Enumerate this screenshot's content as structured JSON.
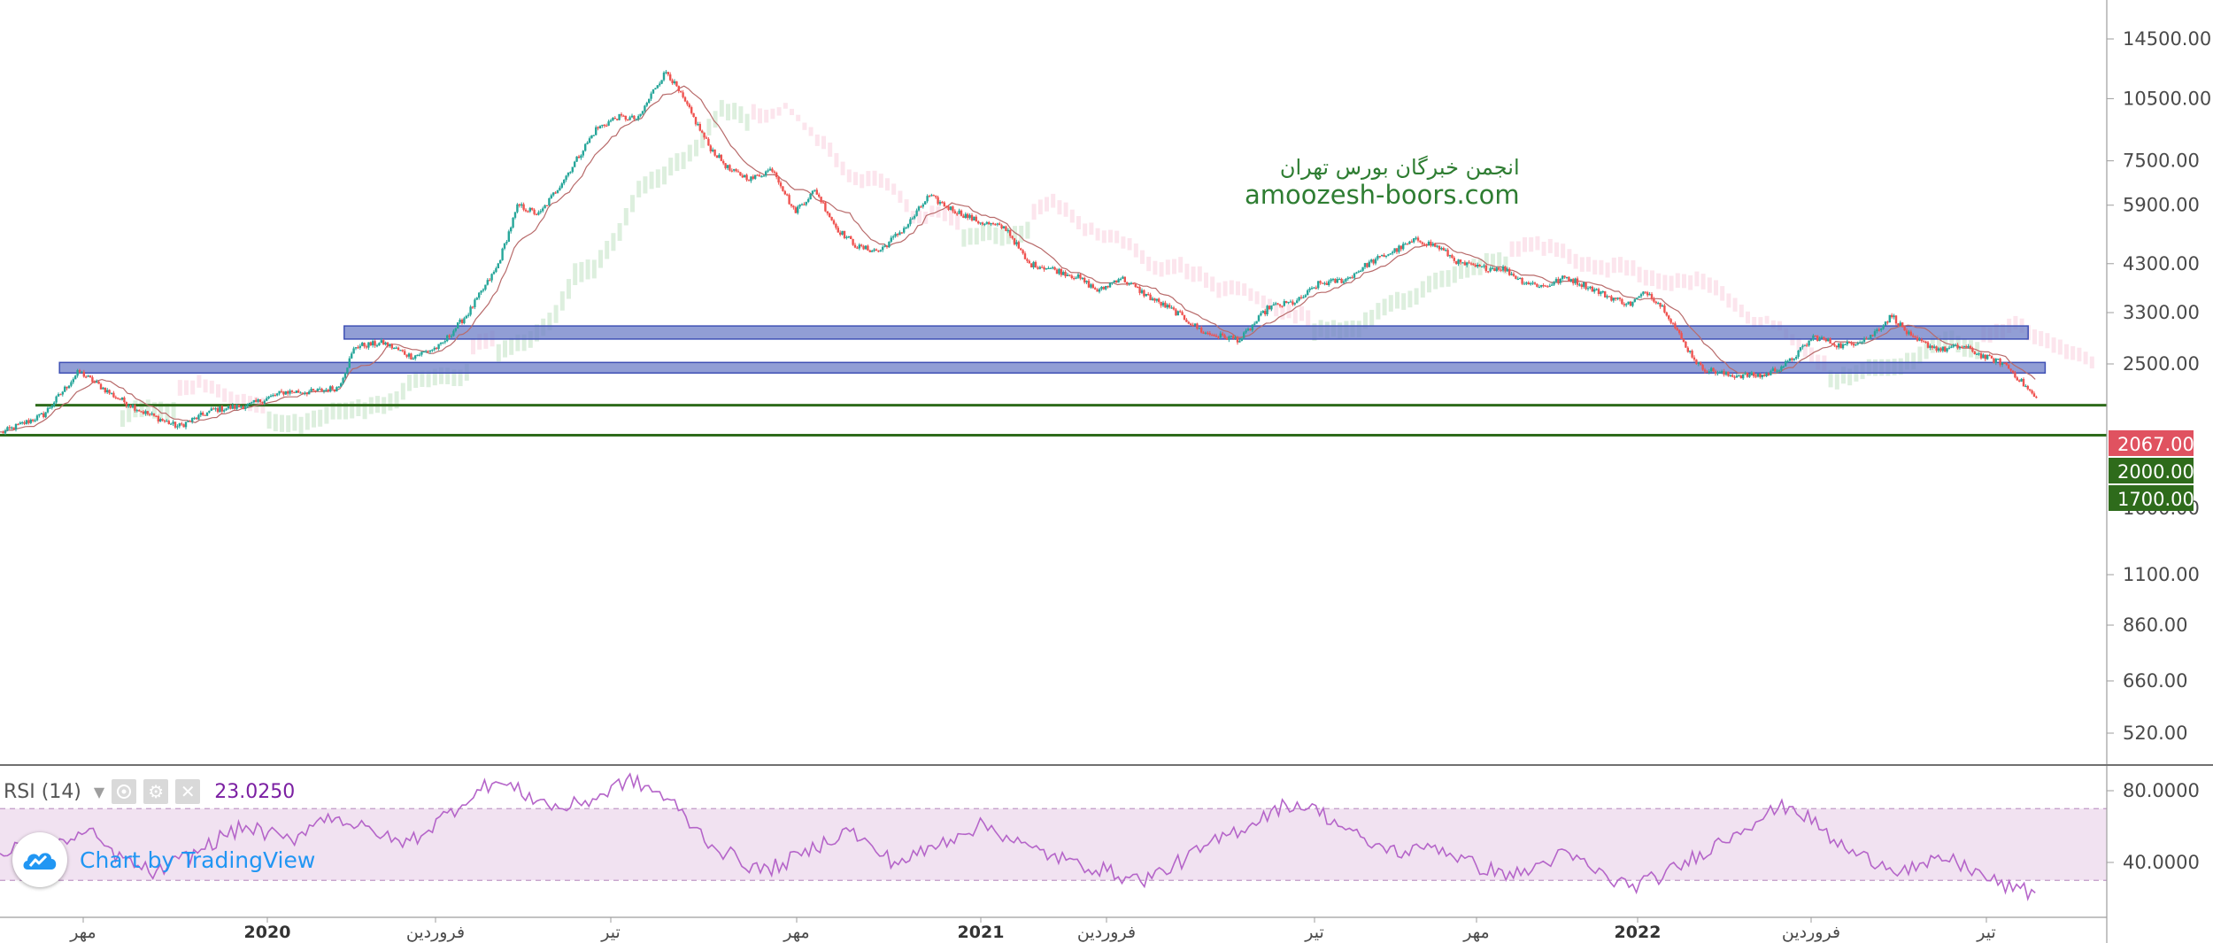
{
  "chart_data": {
    "type": "candlestick",
    "scale": "log",
    "price_axis_ticks": [
      14500,
      10500,
      7500,
      5900,
      4300,
      3300,
      2500,
      1100,
      860,
      660,
      520
    ],
    "price_labels": [
      {
        "value": 2067,
        "text": "2067.00",
        "color": "#e05260"
      },
      {
        "value": 2000,
        "text": "2000.00",
        "color": "#2e6b1b"
      },
      {
        "value": 1700,
        "text": "1700.00",
        "color": "#2e6b1b"
      }
    ],
    "overlapped_tick_text": "1600.00",
    "time_axis_labels": [
      {
        "text": "مهر",
        "year": false
      },
      {
        "text": "2020",
        "year": true
      },
      {
        "text": "فروردین",
        "year": false
      },
      {
        "text": "تیر",
        "year": false
      },
      {
        "text": "مهر",
        "year": false
      },
      {
        "text": "2021",
        "year": true
      },
      {
        "text": "فروردین",
        "year": false
      },
      {
        "text": "تیر",
        "year": false
      },
      {
        "text": "مهر",
        "year": false
      },
      {
        "text": "2022",
        "year": true
      },
      {
        "text": "فروردین",
        "year": false
      },
      {
        "text": "تیر",
        "year": false
      }
    ],
    "price_path": [
      [
        0,
        1720
      ],
      [
        30,
        1900
      ],
      [
        55,
        2400
      ],
      [
        80,
        2100
      ],
      [
        100,
        1930
      ],
      [
        125,
        1780
      ],
      [
        150,
        1950
      ],
      [
        175,
        2000
      ],
      [
        200,
        2150
      ],
      [
        220,
        2150
      ],
      [
        238,
        2200
      ],
      [
        250,
        2750
      ],
      [
        270,
        2800
      ],
      [
        290,
        2600
      ],
      [
        310,
        2750
      ],
      [
        330,
        3300
      ],
      [
        350,
        4200
      ],
      [
        365,
        5900
      ],
      [
        380,
        5600
      ],
      [
        400,
        7000
      ],
      [
        420,
        8900
      ],
      [
        435,
        9500
      ],
      [
        450,
        9400
      ],
      [
        462,
        11200
      ],
      [
        470,
        12200
      ],
      [
        485,
        10000
      ],
      [
        500,
        8100
      ],
      [
        515,
        7100
      ],
      [
        530,
        6800
      ],
      [
        545,
        7200
      ],
      [
        560,
        5700
      ],
      [
        575,
        6400
      ],
      [
        590,
        5200
      ],
      [
        605,
        4700
      ],
      [
        620,
        4600
      ],
      [
        640,
        5300
      ],
      [
        655,
        6200
      ],
      [
        670,
        5800
      ],
      [
        690,
        5400
      ],
      [
        710,
        5200
      ],
      [
        725,
        4300
      ],
      [
        740,
        4200
      ],
      [
        760,
        4000
      ],
      [
        775,
        3700
      ],
      [
        790,
        4000
      ],
      [
        810,
        3600
      ],
      [
        830,
        3300
      ],
      [
        850,
        2950
      ],
      [
        862,
        2900
      ],
      [
        875,
        2850
      ],
      [
        895,
        3400
      ],
      [
        915,
        3500
      ],
      [
        930,
        3850
      ],
      [
        950,
        3950
      ],
      [
        965,
        4300
      ],
      [
        980,
        4550
      ],
      [
        1000,
        4900
      ],
      [
        1015,
        4700
      ],
      [
        1030,
        4300
      ],
      [
        1045,
        4200
      ],
      [
        1060,
        4200
      ],
      [
        1075,
        3900
      ],
      [
        1090,
        3800
      ],
      [
        1105,
        4000
      ],
      [
        1120,
        3800
      ],
      [
        1135,
        3600
      ],
      [
        1150,
        3450
      ],
      [
        1162,
        3700
      ],
      [
        1175,
        3350
      ],
      [
        1188,
        2800
      ],
      [
        1200,
        2450
      ],
      [
        1220,
        2350
      ],
      [
        1245,
        2350
      ],
      [
        1262,
        2520
      ],
      [
        1280,
        2900
      ],
      [
        1300,
        2750
      ],
      [
        1320,
        2900
      ],
      [
        1335,
        3250
      ],
      [
        1350,
        2850
      ],
      [
        1370,
        2700
      ],
      [
        1385,
        2750
      ],
      [
        1400,
        2600
      ],
      [
        1415,
        2500
      ],
      [
        1430,
        2200
      ],
      [
        1437,
        2067
      ]
    ],
    "horizontal_levels": [
      {
        "low": 2860,
        "high": 3070,
        "from": 243,
        "to": 1432,
        "type": "resistance-zone"
      },
      {
        "low": 2380,
        "high": 2520,
        "from": 42,
        "to": 1444,
        "type": "support-zone"
      },
      {
        "value": 2000,
        "from": 25,
        "to": 1490,
        "type": "line"
      },
      {
        "value": 1700,
        "from": 0,
        "to": 1490,
        "type": "line"
      }
    ],
    "volume_ticks": [
      1100,
      860,
      660,
      520
    ],
    "indicator": {
      "name": "RSI (14)",
      "value": "23.0250",
      "ticks": [
        "80.0000",
        "40.0000"
      ],
      "upper_band": 70,
      "lower_band": 30,
      "values": [
        45,
        48,
        44,
        52,
        57,
        46,
        38,
        34,
        41,
        47,
        55,
        60,
        56,
        52,
        62,
        66,
        60,
        55,
        50,
        57,
        67,
        76,
        85,
        81,
        75,
        70,
        73,
        78,
        86,
        82,
        74,
        60,
        48,
        42,
        35,
        39,
        46,
        52,
        58,
        48,
        40,
        44,
        50,
        57,
        61,
        55,
        48,
        44,
        40,
        37,
        33,
        30,
        35,
        42,
        49,
        56,
        62,
        70,
        73,
        68,
        60,
        52,
        47,
        45,
        50,
        44,
        38,
        35,
        33,
        40,
        45,
        38,
        30,
        27,
        31,
        37,
        45,
        52,
        60,
        67,
        72,
        63,
        52,
        44,
        40,
        36,
        38,
        42,
        37,
        30,
        25,
        23
      ]
    }
  },
  "watermark": {
    "line1": "انجمن خبرگان بورس تهران",
    "line2": "amoozesh-boors.com"
  },
  "rsi_header": {
    "title": "RSI (14)",
    "arrow": "▼",
    "settings_icon": "⚙",
    "close_icon": "✕",
    "value": "23.0250"
  },
  "tradingview": {
    "label": "Chart by TradingView"
  },
  "colors": {
    "up": "#26a69a",
    "down": "#ef5350",
    "zone": "#7283c9",
    "level": "#2e6b1b",
    "rsi": "#b565c9",
    "rsi_band": "#f1e2f1",
    "volume_ma": "#64b5f6"
  }
}
